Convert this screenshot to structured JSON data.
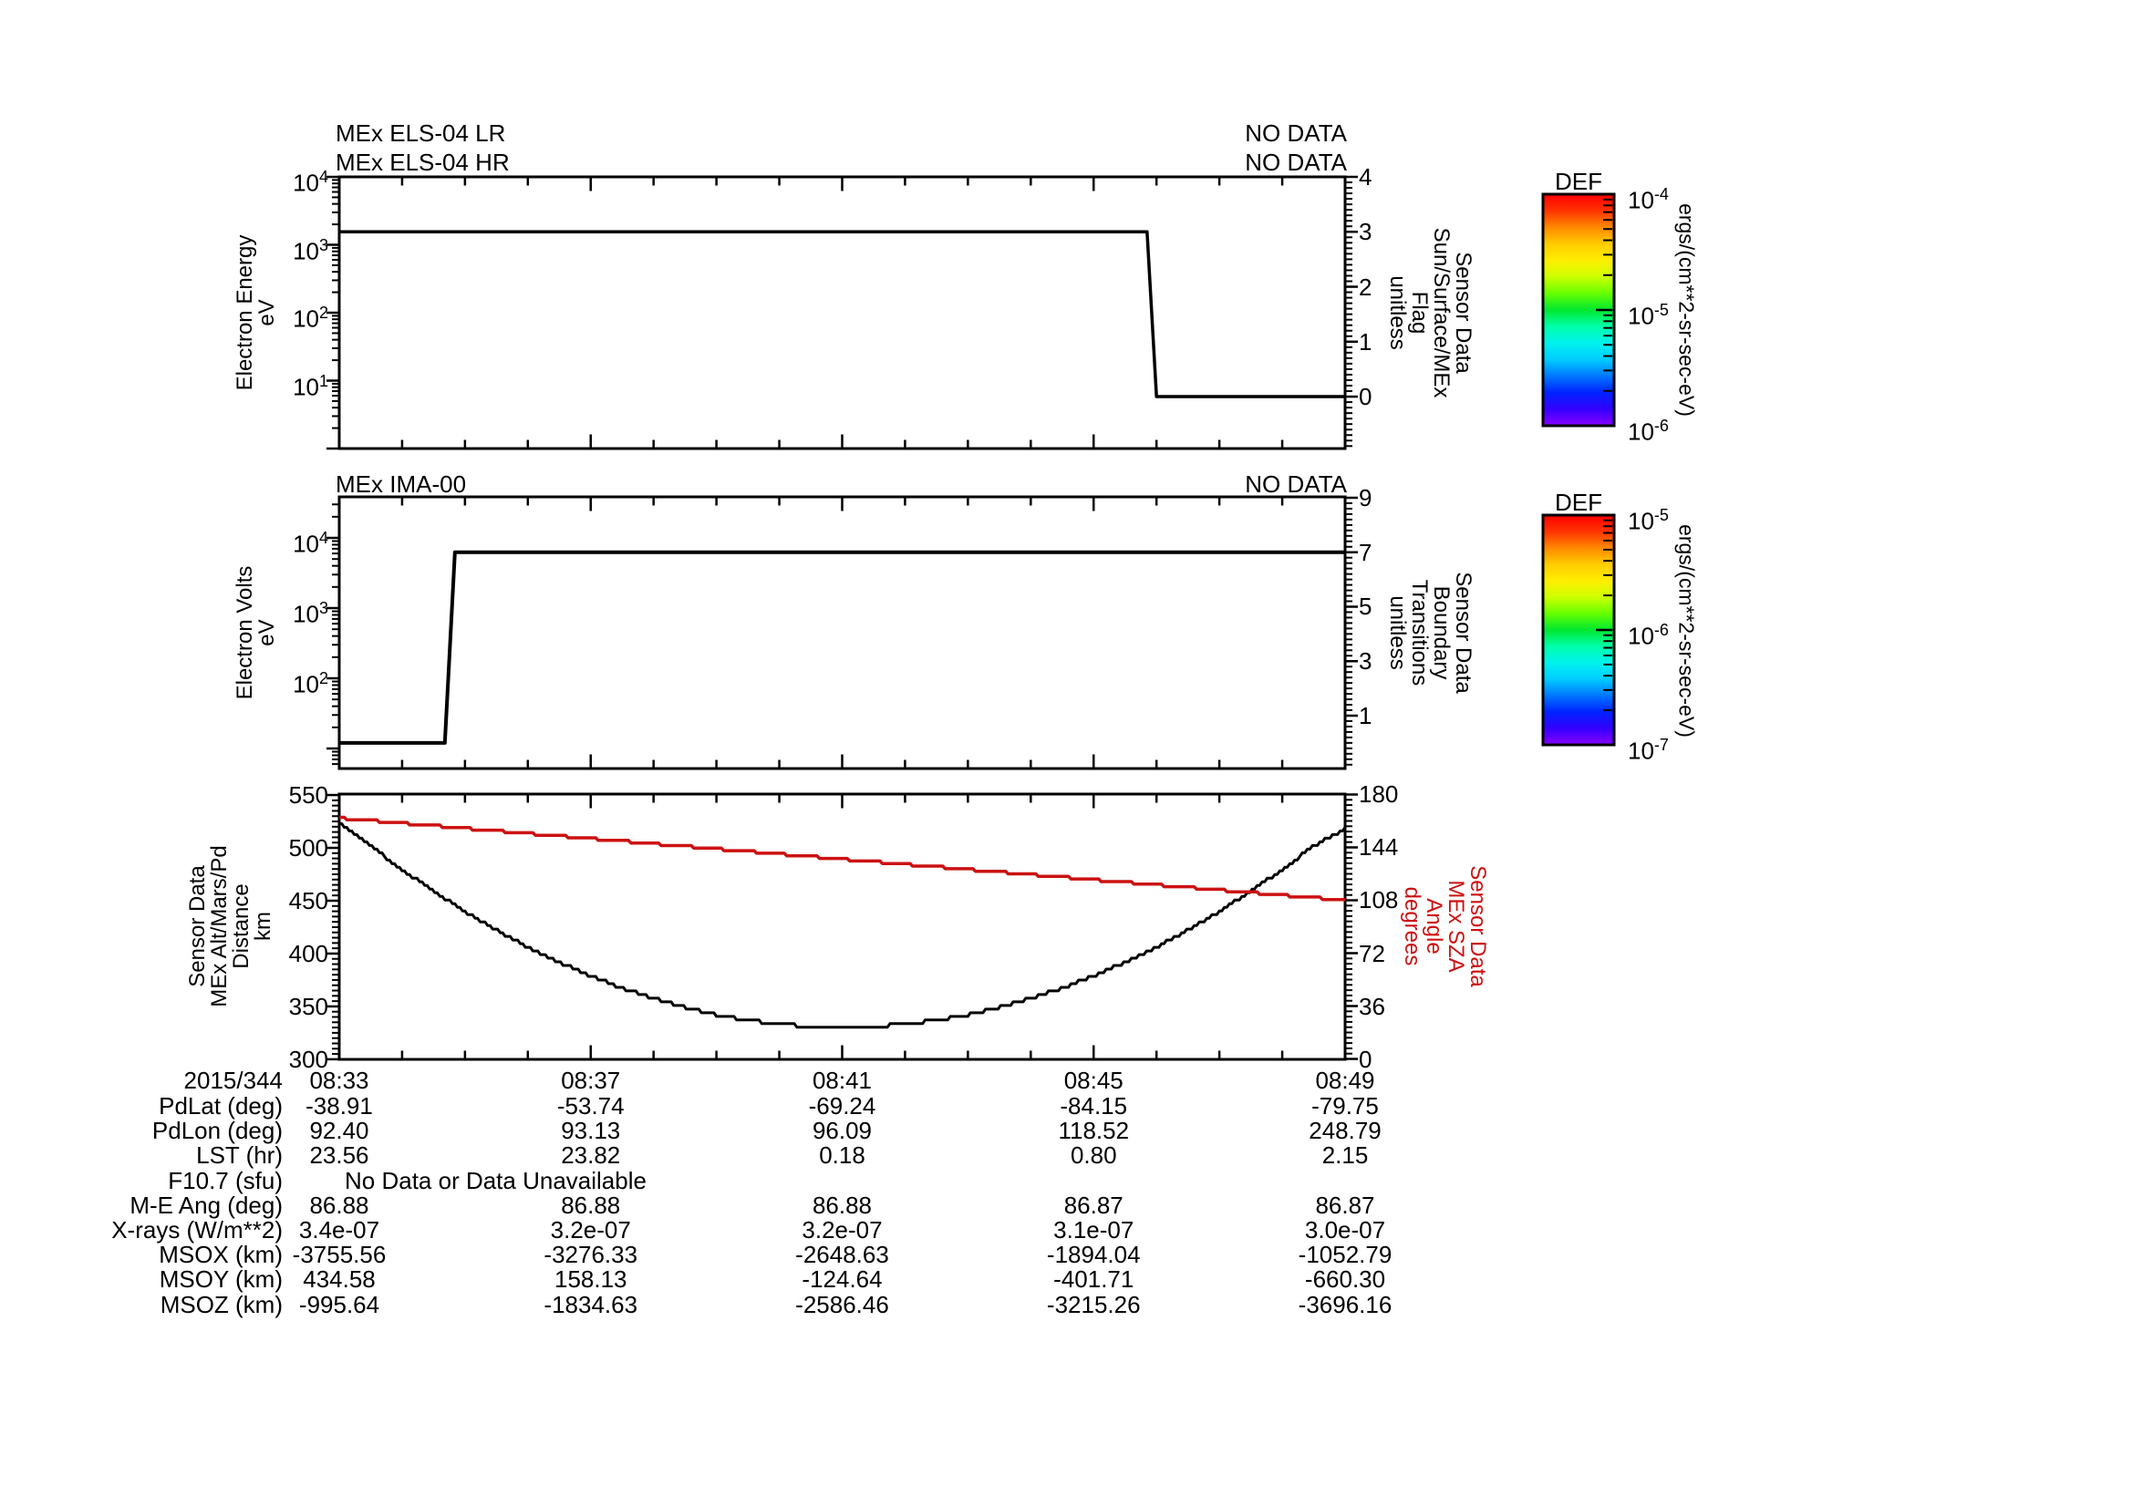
{
  "colors": {
    "foreground": "#000000",
    "background": "#ffffff",
    "accent_red": "#cc1111",
    "rainbow_top_to_bottom": [
      "#ff0000",
      "#ff3300",
      "#ff8800",
      "#ffcc00",
      "#ffee00",
      "#ccff00",
      "#66ff00",
      "#00e830",
      "#00ffaa",
      "#00f2ee",
      "#00ccff",
      "#0077ff",
      "#0022ff",
      "#3300ff",
      "#8800ff"
    ]
  },
  "x_axis": {
    "date_label": "2015/344",
    "tick_labels": [
      "08:33",
      "08:37",
      "08:41",
      "08:45",
      "08:49"
    ],
    "tick_minutes": [
      0,
      4,
      8,
      12,
      16
    ],
    "minutes_total": 16
  },
  "chart_data": [
    {
      "id": "els",
      "type": "line",
      "titles": [
        "MEx ELS-04 LR",
        "MEx ELS-04 HR"
      ],
      "status": [
        "NO DATA",
        "NO DATA"
      ],
      "y_left": {
        "title": "Electron Energy\neV",
        "scale": "log",
        "tick_labels": [
          "10^4",
          "10^3",
          "10^2",
          "10^1"
        ],
        "tick_values": [
          10000,
          1000,
          100,
          10
        ]
      },
      "y_right": {
        "title": "Sensor Data\nSun/Surface/MEx\nFlag\nunitless",
        "tick_values": [
          4,
          3,
          2,
          1,
          0
        ]
      },
      "series": [
        {
          "name": "Sun/Surface/MEx Flag",
          "axis": "right",
          "color": "#000000",
          "width": 3.5,
          "points": [
            [
              0,
              3
            ],
            [
              12.85,
              3
            ],
            [
              13.0,
              0
            ],
            [
              16,
              0
            ]
          ]
        }
      ]
    },
    {
      "id": "ima",
      "type": "line",
      "titles": [
        "MEx IMA-00"
      ],
      "status": [
        "NO DATA"
      ],
      "y_left": {
        "title": "Electron Volts\neV",
        "scale": "log",
        "tick_labels": [
          "10^4",
          "10^3",
          "10^2"
        ],
        "tick_values": [
          10000,
          1000,
          100
        ]
      },
      "y_right": {
        "title": "Sensor Data\nBoundary\nTransitions\nunitless",
        "tick_values": [
          9,
          7,
          5,
          3,
          1
        ]
      },
      "series": [
        {
          "name": "Boundary Transitions",
          "axis": "right",
          "color": "#000000",
          "width": 4,
          "points": [
            [
              0,
              0
            ],
            [
              1.68,
              0
            ],
            [
              1.84,
              7
            ],
            [
              16,
              7
            ]
          ]
        }
      ]
    },
    {
      "id": "orbit",
      "type": "line",
      "titles": [],
      "status": [],
      "y_left": {
        "title": "Sensor Data\nMEx Alt/Mars/Pd\nDistance\nkm",
        "tick_values": [
          550,
          500,
          450,
          400,
          350,
          300
        ]
      },
      "y_right": {
        "title": "Sensor Data\nMEx SZA\nAngle\ndegrees",
        "tick_values": [
          180,
          144,
          108,
          72,
          36,
          0
        ],
        "color": "#cc1111"
      },
      "series": [
        {
          "name": "MEx altitude (km)",
          "axis": "left",
          "color": "#000000",
          "width": 3,
          "quantize": 3.44,
          "sample_dt": 0.5,
          "values": [
            523,
            501.6,
            479.5,
            458.9,
            439.8,
            422.3,
            406.3,
            391.8,
            378.8,
            367.4,
            357.5,
            349.1,
            342.2,
            336.9,
            333.1,
            330.8,
            330,
            330.8,
            333.1,
            336.9,
            342.2,
            349.1,
            357.5,
            367.4,
            378.8,
            391.8,
            406.3,
            422.3,
            439.8,
            458.9,
            479.5,
            501.6,
            518
          ],
          "t_range": [
            0,
            16
          ]
        },
        {
          "name": "MEx SZA (degrees)",
          "axis": "right",
          "color": "#cc1111",
          "width": 3.5,
          "quantize": 1.75,
          "points": [
            [
              0,
              164
            ],
            [
              16,
              108
            ]
          ]
        }
      ]
    }
  ],
  "colorbars": [
    {
      "title": "DEF",
      "tick_labels": [
        "10^-4",
        "10^-5",
        "10^-6"
      ],
      "unit": "ergs/(cm**2-sr-sec-eV)"
    },
    {
      "title": "DEF",
      "tick_labels": [
        "10^-5",
        "10^-6",
        "10^-7"
      ],
      "unit": "ergs/(cm**2-sr-sec-eV)"
    }
  ],
  "table": {
    "rows": [
      {
        "label": "PdLat (deg)",
        "values": [
          "-38.91",
          "-53.74",
          "-69.24",
          "-84.15",
          "-79.75"
        ]
      },
      {
        "label": "PdLon (deg)",
        "values": [
          "92.40",
          "93.13",
          "96.09",
          "118.52",
          "248.79"
        ]
      },
      {
        "label": "LST (hr)",
        "values": [
          "23.56",
          "23.82",
          "0.18",
          "0.80",
          "2.15"
        ]
      },
      {
        "label": "F10.7 (sfu)",
        "message": "No Data or Data Unavailable"
      },
      {
        "label": "M-E Ang (deg)",
        "values": [
          "86.88",
          "86.88",
          "86.88",
          "86.87",
          "86.87"
        ]
      },
      {
        "label": "X-rays (W/m**2)",
        "values": [
          "3.4e-07",
          "3.2e-07",
          "3.2e-07",
          "3.1e-07",
          "3.0e-07"
        ]
      },
      {
        "label": "MSOX (km)",
        "values": [
          "-3755.56",
          "-3276.33",
          "-2648.63",
          "-1894.04",
          "-1052.79"
        ]
      },
      {
        "label": "MSOY (km)",
        "values": [
          "434.58",
          "158.13",
          "-124.64",
          "-401.71",
          "-660.30"
        ]
      },
      {
        "label": "MSOZ (km)",
        "values": [
          "-995.64",
          "-1834.63",
          "-2586.46",
          "-3215.26",
          "-3696.16"
        ]
      }
    ]
  }
}
